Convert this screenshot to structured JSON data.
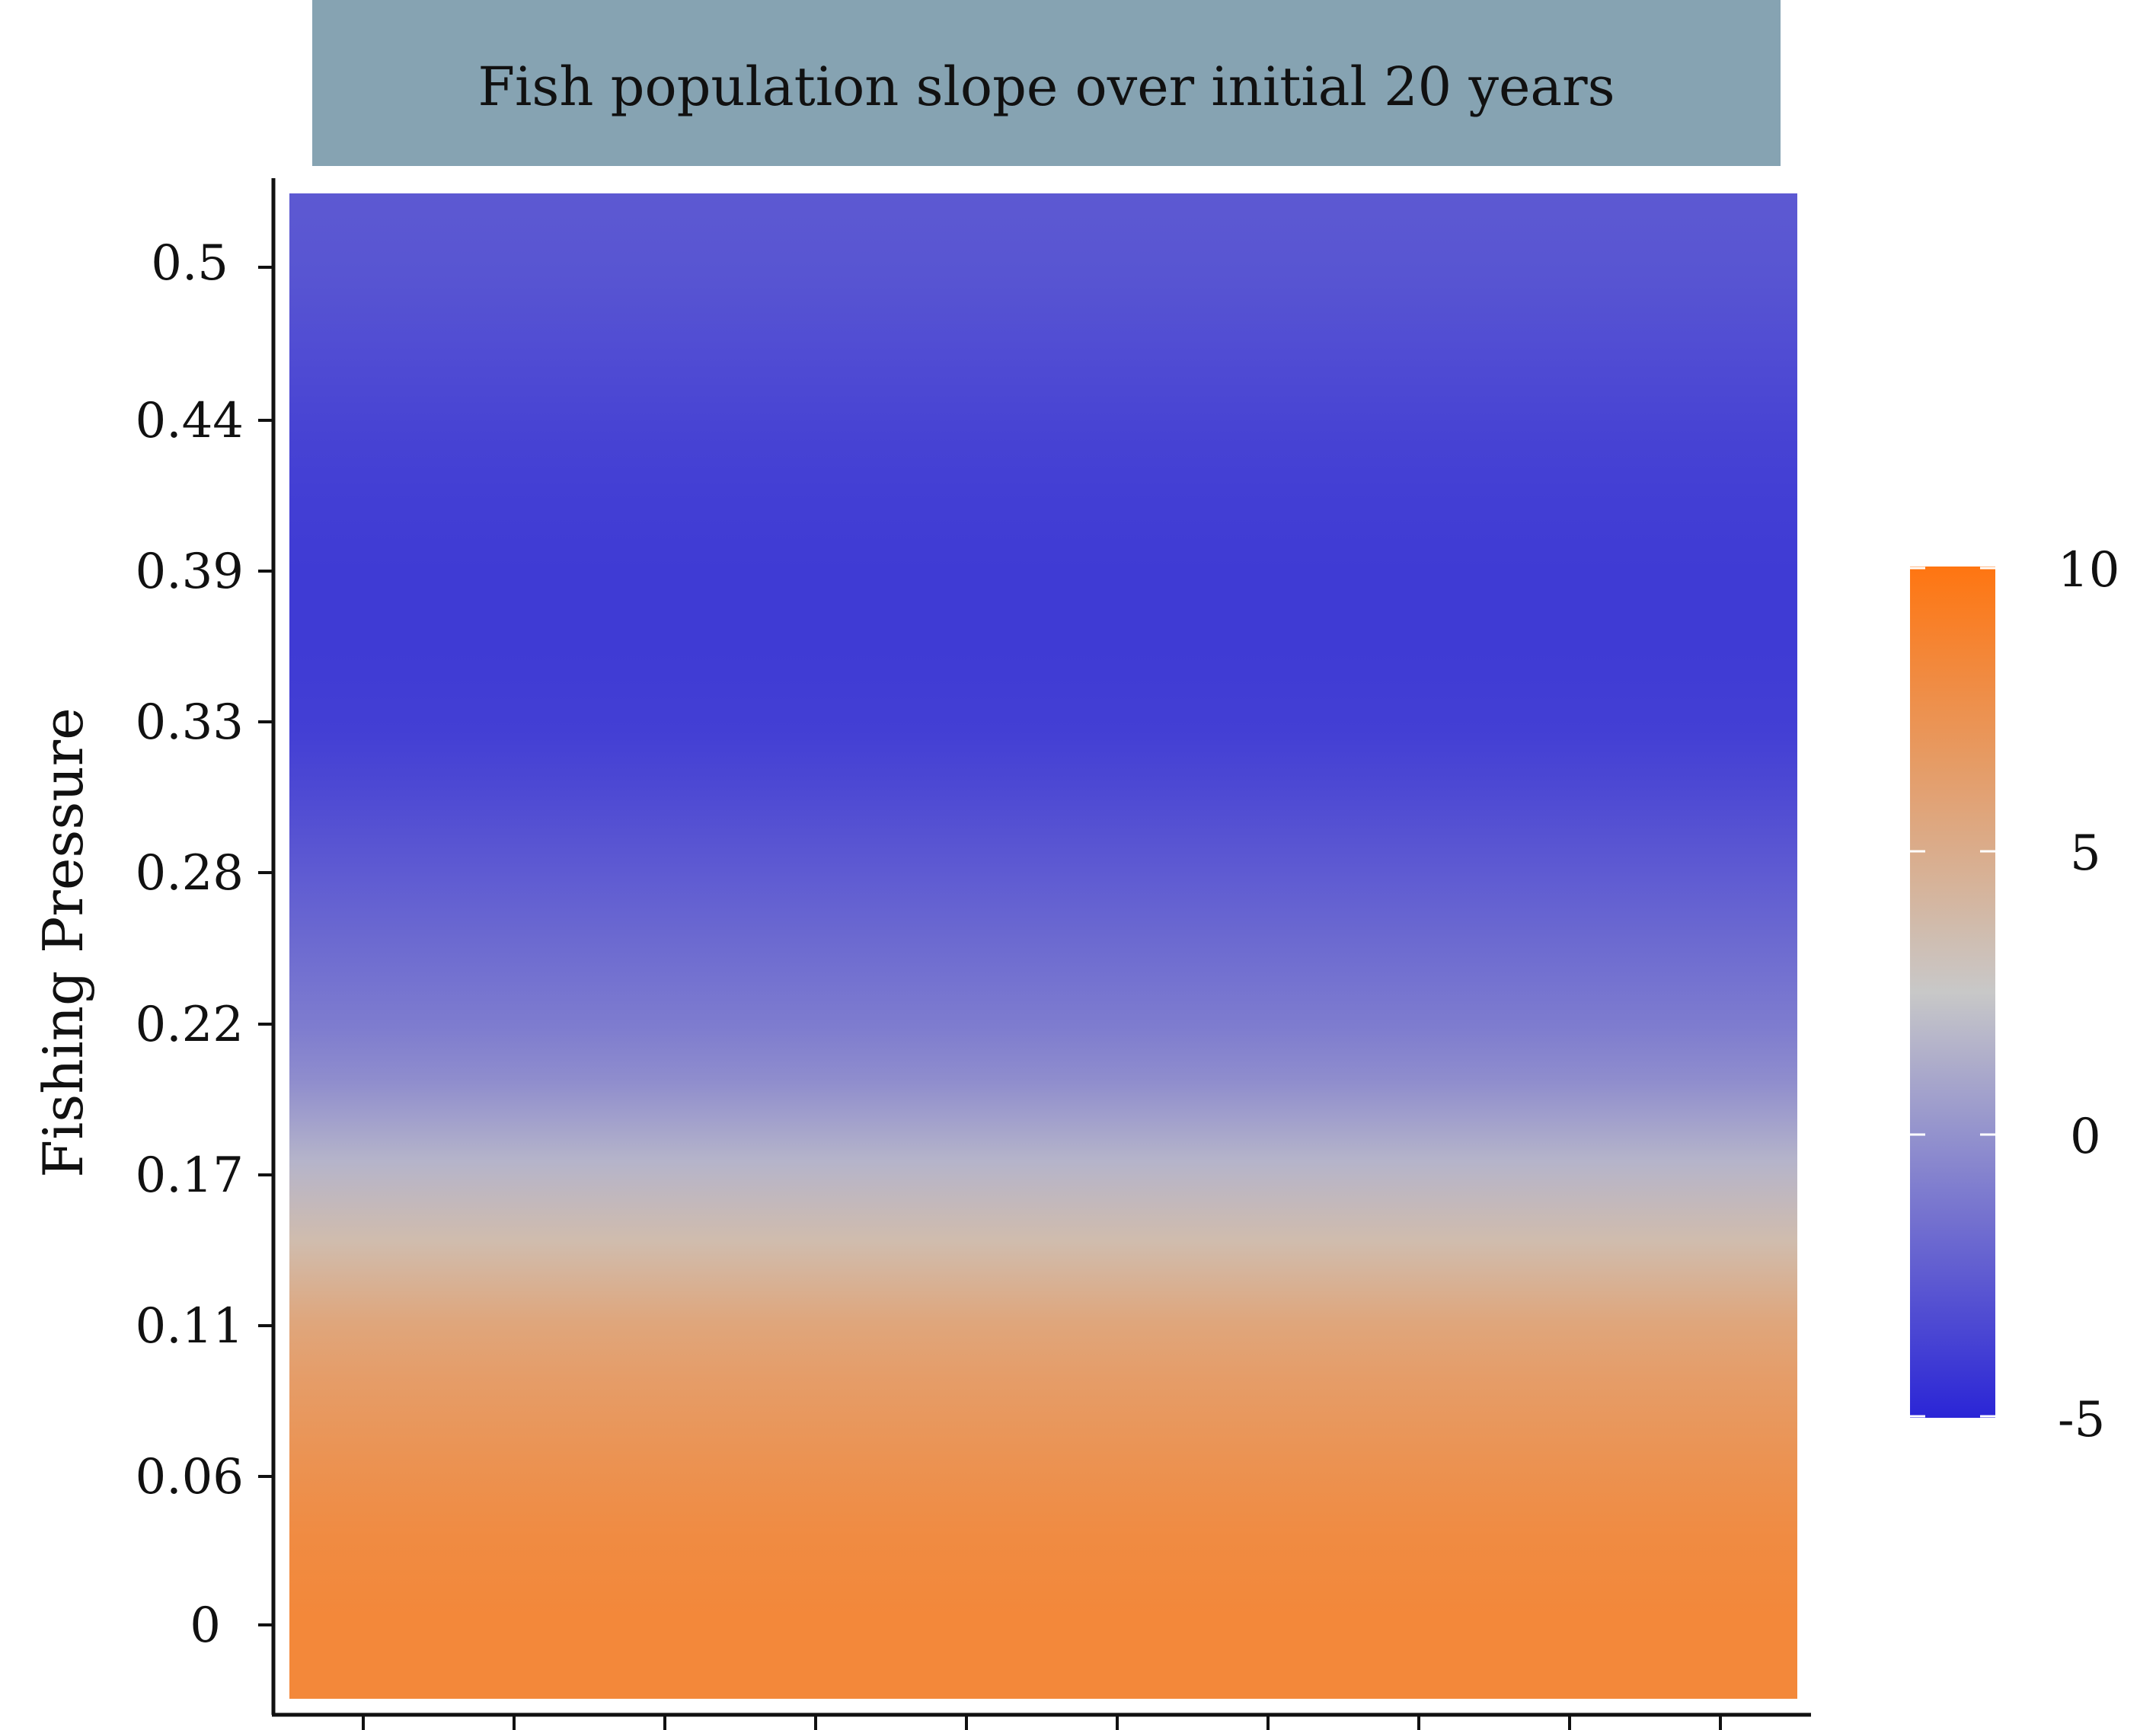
{
  "chart_data": {
    "type": "heatmap",
    "title": "Fish population slope over initial 20 years",
    "xlabel": "",
    "ylabel": "Fishing Pressure",
    "y_ticks": [
      "0",
      "0.06",
      "0.11",
      "0.17",
      "0.22",
      "0.28",
      "0.33",
      "0.39",
      "0.44",
      "0.5"
    ],
    "x_ticks": [
      "",
      "",
      "",
      "",
      "",
      "",
      "",
      "",
      "",
      "",
      ""
    ],
    "ylim": [
      -0.03,
      0.53
    ],
    "fill_profile": {
      "fishing_pressure": [
        0,
        0.03,
        0.06,
        0.09,
        0.11,
        0.14,
        0.17,
        0.2,
        0.22,
        0.25,
        0.28,
        0.31,
        0.33,
        0.36,
        0.39,
        0.42,
        0.44,
        0.47,
        0.5,
        0.53
      ],
      "slope": [
        8.3,
        8.0,
        7.3,
        6.4,
        5.6,
        3.6,
        1.6,
        -0.2,
        -1.0,
        -1.8,
        -2.6,
        -3.4,
        -3.8,
        -4.0,
        -4.0,
        -3.8,
        -3.6,
        -3.2,
        -2.8,
        -2.6
      ]
    },
    "legend": {
      "position": "right",
      "range": [
        -5,
        10
      ],
      "midpoint": 2.5,
      "breaks": [
        "10",
        "5",
        "0",
        "-5"
      ],
      "colors": {
        "low": "#2a25d6",
        "mid": "#c8c8c8",
        "high": "#ff7511"
      }
    },
    "strip_color": "#86a3b2"
  }
}
